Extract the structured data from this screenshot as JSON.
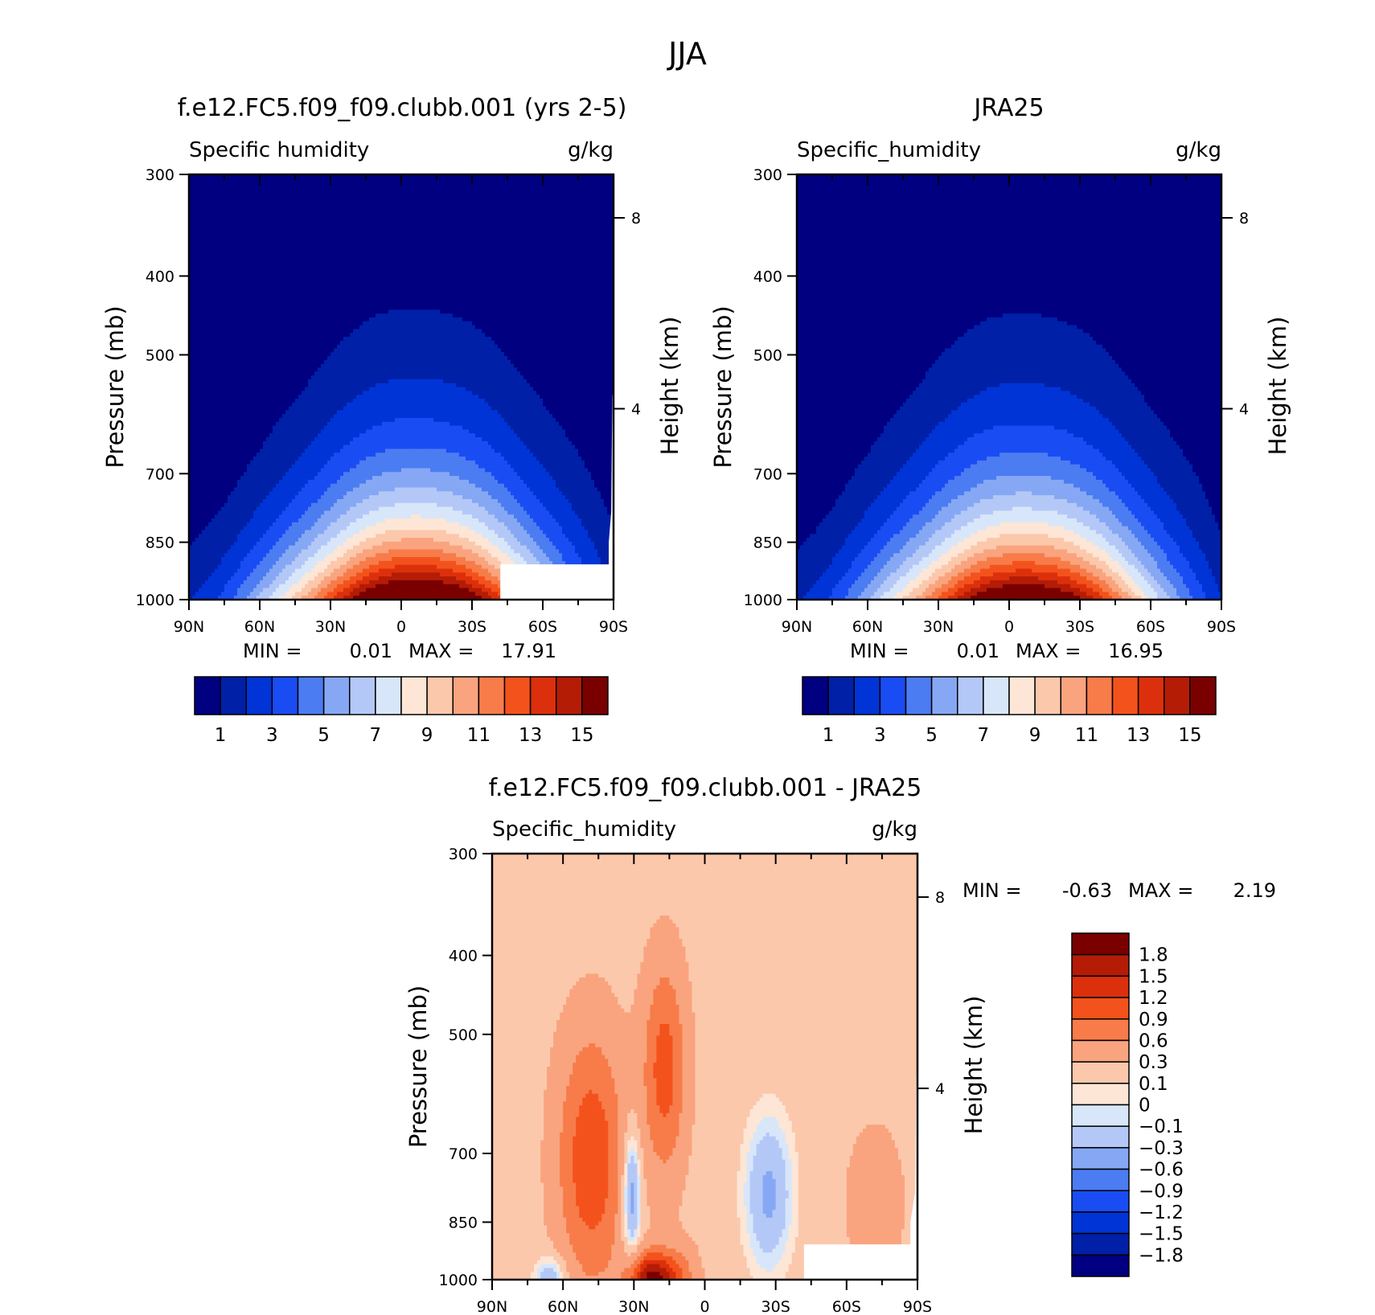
{
  "figure": {
    "title": "JJA"
  },
  "chart_data": [
    {
      "type": "heatmap",
      "panel": "model",
      "title": "f.e12.FC5.f09_f09.clubb.001 (yrs 2-5)",
      "variable_label": "Specific humidity",
      "units_label": "g/kg",
      "ylabel": "Pressure (mb)",
      "ylabel_right": "Height (km)",
      "x_ticks": [
        "90N",
        "60N",
        "30N",
        "0",
        "30S",
        "60S",
        "90S"
      ],
      "y_ticks": [
        300,
        400,
        500,
        700,
        850,
        1000
      ],
      "y_log_scale": true,
      "right_ticks": [
        8,
        4
      ],
      "min_label": "MIN =",
      "min_value": "0.01",
      "max_label": "MAX =",
      "max_value": "17.91",
      "peak": {
        "lat": -8,
        "value": 17.91
      },
      "colorbar": {
        "orientation": "horizontal",
        "labels": [
          "1",
          "3",
          "5",
          "7",
          "9",
          "11",
          "13",
          "15"
        ],
        "levels": [
          1,
          2,
          3,
          4,
          5,
          6,
          7,
          8,
          9,
          10,
          11,
          12,
          13,
          14,
          15
        ],
        "colors": [
          "#000080",
          "#0020a8",
          "#0034d6",
          "#1a4cf4",
          "#4c7cf2",
          "#86a8f4",
          "#b4c8f8",
          "#d8e6fa",
          "#fde6d6",
          "#fcc8ac",
          "#f9a47e",
          "#f77c4a",
          "#f4521c",
          "#dc300c",
          "#b41c06",
          "#7a0000"
        ]
      }
    },
    {
      "type": "heatmap",
      "panel": "observations",
      "title": "JRA25",
      "variable_label": "Specific_humidity",
      "units_label": "g/kg",
      "ylabel": "Pressure (mb)",
      "ylabel_right": "Height (km)",
      "x_ticks": [
        "90N",
        "60N",
        "30N",
        "0",
        "30S",
        "60S",
        "90S"
      ],
      "y_ticks": [
        300,
        400,
        500,
        700,
        850,
        1000
      ],
      "y_log_scale": true,
      "right_ticks": [
        8,
        4
      ],
      "min_label": "MIN =",
      "min_value": "0.01",
      "max_label": "MAX =",
      "max_value": "16.95",
      "peak": {
        "lat": -8,
        "value": 16.95
      },
      "colorbar": {
        "orientation": "horizontal",
        "labels": [
          "1",
          "3",
          "5",
          "7",
          "9",
          "11",
          "13",
          "15"
        ],
        "levels": [
          1,
          2,
          3,
          4,
          5,
          6,
          7,
          8,
          9,
          10,
          11,
          12,
          13,
          14,
          15
        ],
        "colors": [
          "#000080",
          "#0020a8",
          "#0034d6",
          "#1a4cf4",
          "#4c7cf2",
          "#86a8f4",
          "#b4c8f8",
          "#d8e6fa",
          "#fde6d6",
          "#fcc8ac",
          "#f9a47e",
          "#f77c4a",
          "#f4521c",
          "#dc300c",
          "#b41c06",
          "#7a0000"
        ]
      }
    },
    {
      "type": "heatmap",
      "panel": "difference",
      "title": "f.e12.FC5.f09_f09.clubb.001 - JRA25",
      "variable_label": "Specific_humidity",
      "units_label": "g/kg",
      "ylabel": "Pressure (mb)",
      "ylabel_right": "Height (km)",
      "x_ticks": [
        "90N",
        "60N",
        "30N",
        "0",
        "30S",
        "60S",
        "90S"
      ],
      "y_ticks": [
        300,
        400,
        500,
        700,
        850,
        1000
      ],
      "y_log_scale": true,
      "right_ticks": [
        8,
        4
      ],
      "min_label": "MIN =",
      "min_value": "-0.63",
      "max_label": "MAX =",
      "max_value": "2.19",
      "colorbar": {
        "orientation": "vertical",
        "labels": [
          "1.8",
          "1.5",
          "1.2",
          "0.9",
          "0.6",
          "0.3",
          "0.1",
          "0",
          "-0.1",
          "-0.3",
          "-0.6",
          "-0.9",
          "-1.2",
          "-1.5",
          "-1.8"
        ],
        "colors": [
          "#7a0000",
          "#b41c06",
          "#dc300c",
          "#f4521c",
          "#f77c4a",
          "#f9a47e",
          "#fcc8ac",
          "#fde6d6",
          "#d8e6fa",
          "#b4c8f8",
          "#86a8f4",
          "#4c7cf2",
          "#1a4cf4",
          "#0034d6",
          "#0020a8",
          "#000080"
        ]
      }
    }
  ]
}
